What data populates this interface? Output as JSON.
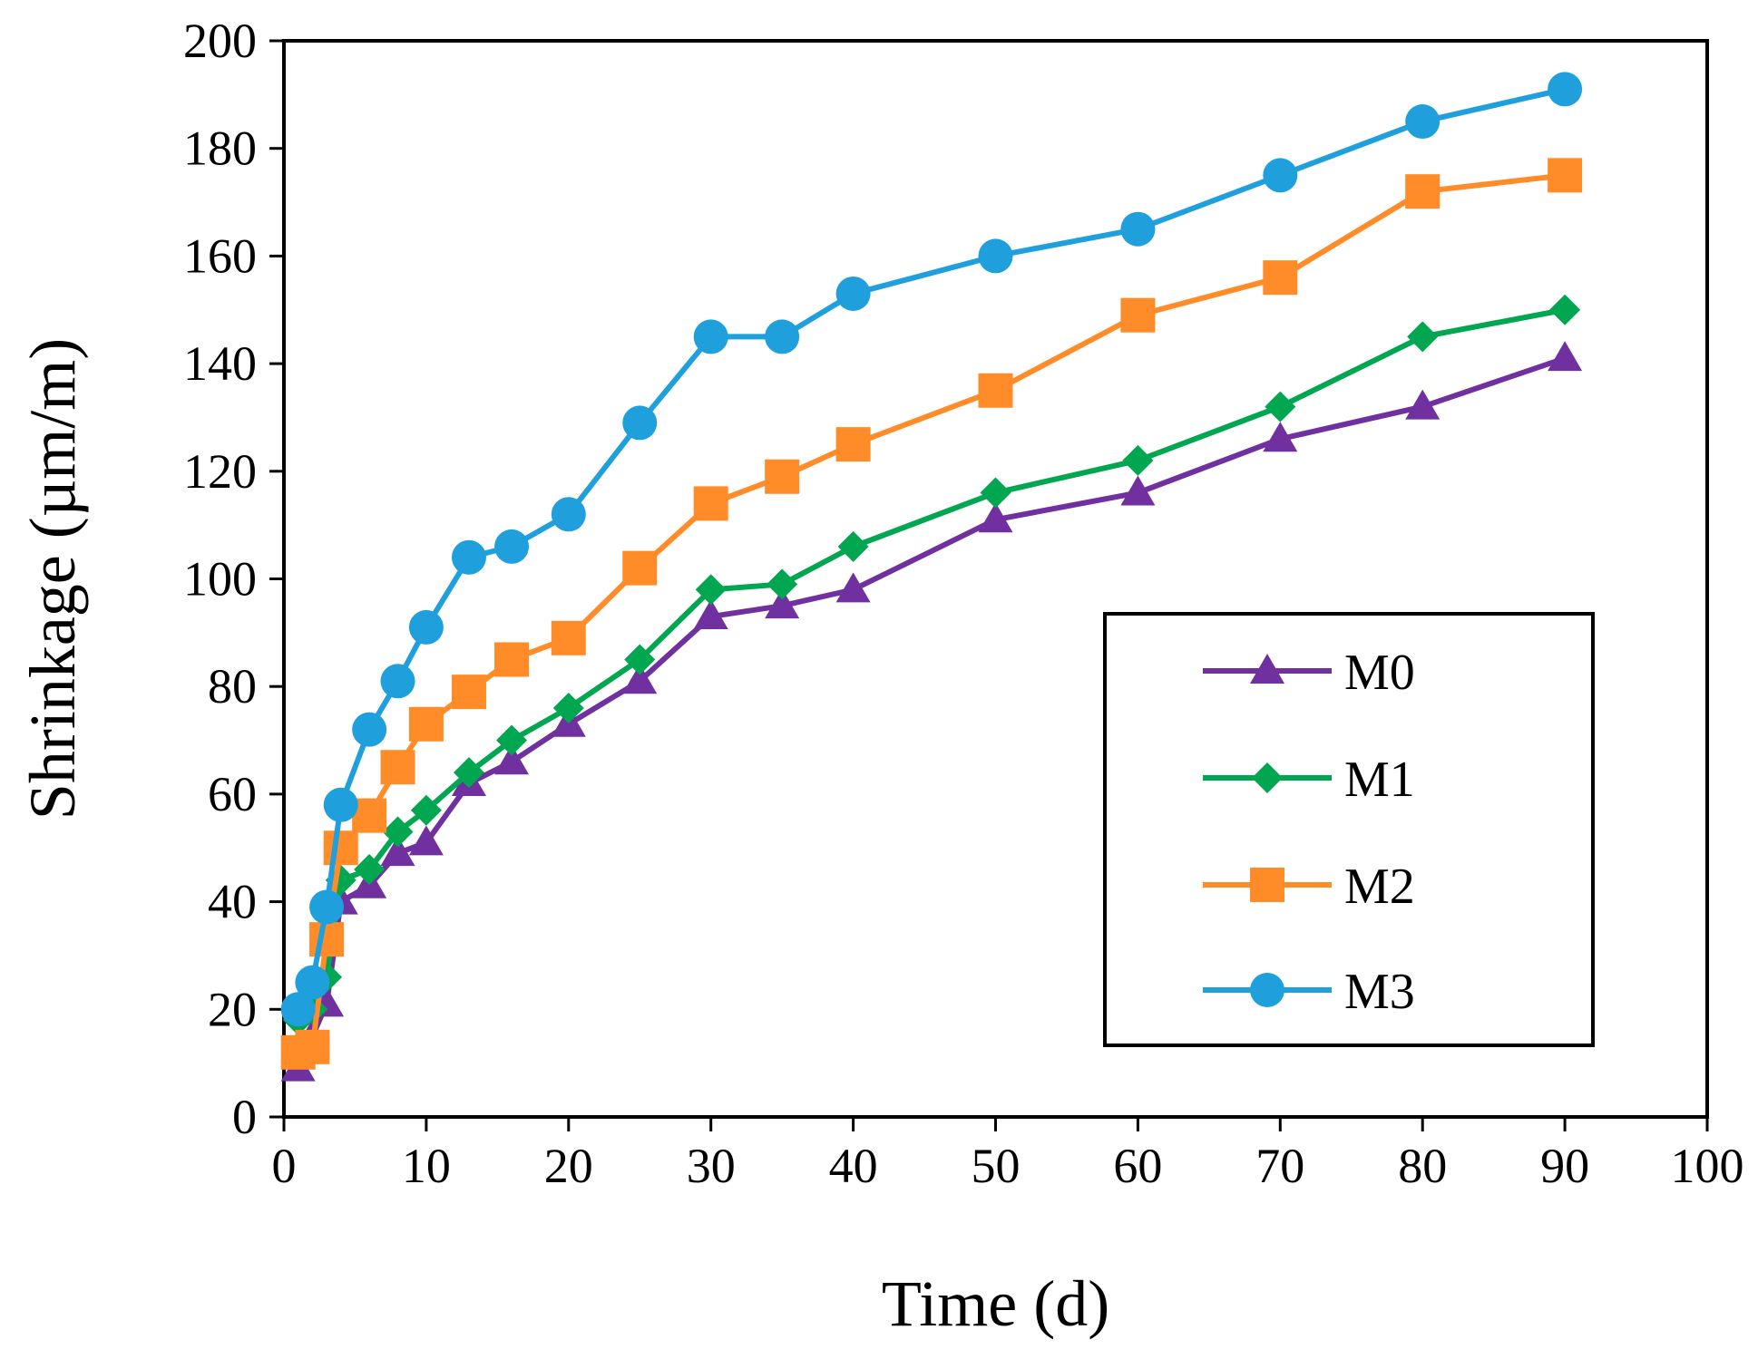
{
  "chart_data": {
    "type": "line",
    "title": "",
    "xlabel": "Time (d)",
    "ylabel": "Shrinkage (µm/m)",
    "xlim": [
      0,
      100
    ],
    "ylim": [
      0,
      200
    ],
    "xticks": [
      0,
      10,
      20,
      30,
      40,
      50,
      60,
      70,
      80,
      90,
      100
    ],
    "yticks": [
      0,
      20,
      40,
      60,
      80,
      100,
      120,
      140,
      160,
      180,
      200
    ],
    "grid": false,
    "legend_position": "center-right",
    "series": [
      {
        "name": "M0",
        "color": "#7030a0",
        "marker": "triangle",
        "x": [
          1,
          2,
          3,
          4,
          6,
          8,
          10,
          13,
          16,
          20,
          25,
          30,
          35,
          40,
          50,
          60,
          70,
          80,
          90
        ],
        "values": [
          9,
          15,
          21,
          40,
          43,
          49,
          51,
          62,
          66,
          73,
          81,
          93,
          95,
          98,
          111,
          116,
          126,
          132,
          141
        ]
      },
      {
        "name": "M1",
        "color": "#00a650",
        "marker": "diamond",
        "x": [
          1,
          2,
          3,
          4,
          6,
          8,
          10,
          13,
          16,
          20,
          25,
          30,
          35,
          40,
          50,
          60,
          70,
          80,
          90
        ],
        "values": [
          18,
          20,
          26,
          44,
          46,
          53,
          57,
          64,
          70,
          76,
          85,
          98,
          99,
          106,
          116,
          122,
          132,
          145,
          150
        ]
      },
      {
        "name": "M2",
        "color": "#ff8c28",
        "marker": "square",
        "x": [
          1,
          2,
          3,
          4,
          6,
          8,
          10,
          13,
          16,
          20,
          25,
          30,
          35,
          40,
          50,
          60,
          70,
          80,
          90
        ],
        "values": [
          12,
          13,
          33,
          50,
          56,
          65,
          73,
          79,
          85,
          89,
          102,
          114,
          119,
          125,
          135,
          149,
          156,
          172,
          175
        ]
      },
      {
        "name": "M3",
        "color": "#1fa0dc",
        "marker": "circle",
        "x": [
          1,
          2,
          3,
          4,
          6,
          8,
          10,
          13,
          16,
          20,
          25,
          30,
          35,
          40,
          50,
          60,
          70,
          80,
          90
        ],
        "values": [
          20,
          25,
          39,
          58,
          72,
          81,
          91,
          104,
          106,
          112,
          129,
          145,
          145,
          153,
          160,
          165,
          175,
          185,
          191
        ]
      }
    ]
  }
}
